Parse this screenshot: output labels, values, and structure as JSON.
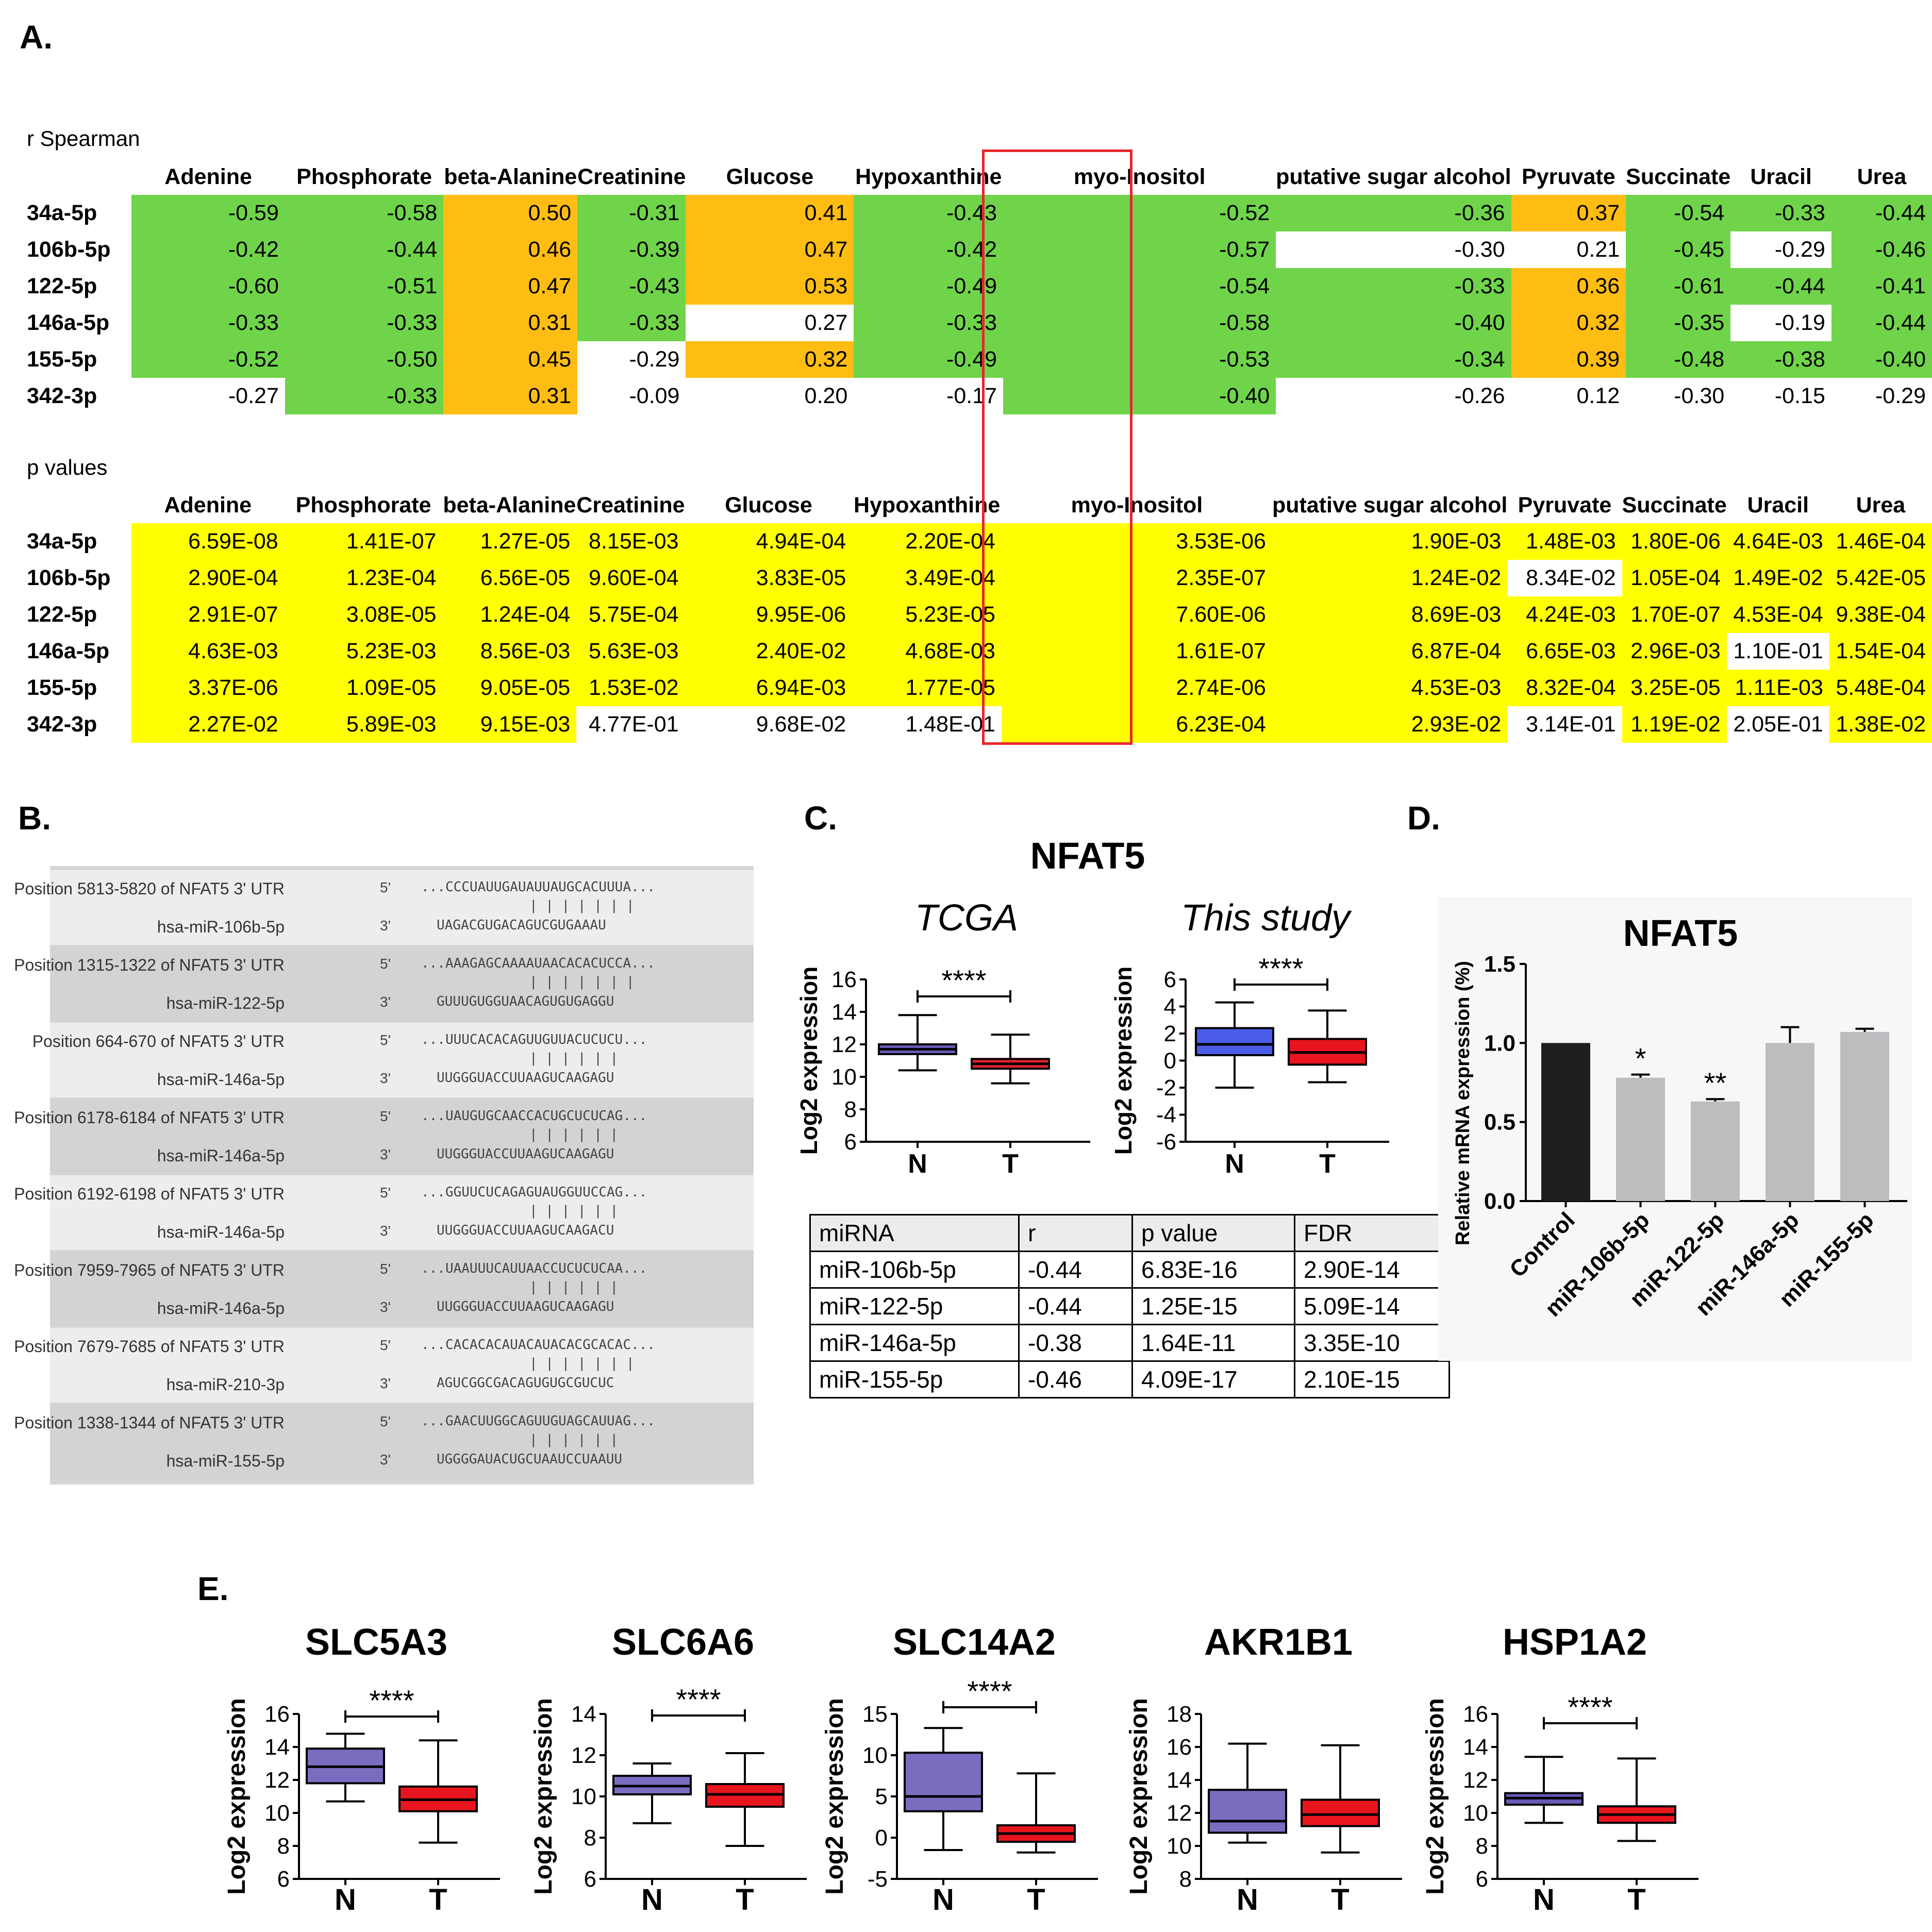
{
  "panels": {
    "a": "A.",
    "b": "B.",
    "c": "C.",
    "d": "D.",
    "e": "E."
  },
  "panel_a": {
    "r_label": "r Spearman",
    "p_label": "p values",
    "columns": [
      "Adenine",
      "Phosphorate",
      "beta-Alanine",
      "Creatinine",
      "Glucose",
      "Hypoxanthine",
      "myo-Inositol",
      "putative sugar alcohol",
      "Pyruvate",
      "Succinate",
      "Uracil",
      "Urea"
    ],
    "highlight_column": "myo-Inositol",
    "colors": {
      "green": "#6fd44a",
      "orange": "#ffbd13",
      "yellow": "#ffff00",
      "box": "#e8262c"
    },
    "r_rows": [
      {
        "mirna": "34a-5p",
        "values": [
          "-0.59",
          "-0.58",
          "0.50",
          "-0.31",
          "0.41",
          "-0.43",
          "-0.52",
          "-0.36",
          "0.37",
          "-0.54",
          "-0.33",
          "-0.44"
        ],
        "colors": [
          "g",
          "g",
          "o",
          "g",
          "o",
          "g",
          "g",
          "g",
          "o",
          "g",
          "g",
          "g"
        ]
      },
      {
        "mirna": "106b-5p",
        "values": [
          "-0.42",
          "-0.44",
          "0.46",
          "-0.39",
          "0.47",
          "-0.42",
          "-0.57",
          "-0.30",
          "0.21",
          "-0.45",
          "-0.29",
          "-0.46"
        ],
        "colors": [
          "g",
          "g",
          "o",
          "g",
          "o",
          "g",
          "g",
          "w",
          "w",
          "g",
          "w",
          "g"
        ]
      },
      {
        "mirna": "122-5p",
        "values": [
          "-0.60",
          "-0.51",
          "0.47",
          "-0.43",
          "0.53",
          "-0.49",
          "-0.54",
          "-0.33",
          "0.36",
          "-0.61",
          "-0.44",
          "-0.41"
        ],
        "colors": [
          "g",
          "g",
          "o",
          "g",
          "o",
          "g",
          "g",
          "g",
          "o",
          "g",
          "g",
          "g"
        ]
      },
      {
        "mirna": "146a-5p",
        "values": [
          "-0.33",
          "-0.33",
          "0.31",
          "-0.33",
          "0.27",
          "-0.33",
          "-0.58",
          "-0.40",
          "0.32",
          "-0.35",
          "-0.19",
          "-0.44"
        ],
        "colors": [
          "g",
          "g",
          "o",
          "g",
          "w",
          "g",
          "g",
          "g",
          "o",
          "g",
          "w",
          "g"
        ]
      },
      {
        "mirna": "155-5p",
        "values": [
          "-0.52",
          "-0.50",
          "0.45",
          "-0.29",
          "0.32",
          "-0.49",
          "-0.53",
          "-0.34",
          "0.39",
          "-0.48",
          "-0.38",
          "-0.40"
        ],
        "colors": [
          "g",
          "g",
          "o",
          "w",
          "o",
          "g",
          "g",
          "g",
          "o",
          "g",
          "g",
          "g"
        ]
      },
      {
        "mirna": "342-3p",
        "values": [
          "-0.27",
          "-0.33",
          "0.31",
          "-0.09",
          "0.20",
          "-0.17",
          "-0.40",
          "-0.26",
          "0.12",
          "-0.30",
          "-0.15",
          "-0.29"
        ],
        "colors": [
          "w",
          "g",
          "o",
          "w",
          "w",
          "w",
          "g",
          "w",
          "w",
          "w",
          "w",
          "w"
        ]
      }
    ],
    "p_rows": [
      {
        "mirna": "34a-5p",
        "values": [
          "6.59E-08",
          "1.41E-07",
          "1.27E-05",
          "8.15E-03",
          "4.94E-04",
          "2.20E-04",
          "3.53E-06",
          "1.90E-03",
          "1.48E-03",
          "1.80E-06",
          "4.64E-03",
          "1.46E-04"
        ],
        "colors": [
          "y",
          "y",
          "y",
          "y",
          "y",
          "y",
          "y",
          "y",
          "y",
          "y",
          "y",
          "y"
        ]
      },
      {
        "mirna": "106b-5p",
        "values": [
          "2.90E-04",
          "1.23E-04",
          "6.56E-05",
          "9.60E-04",
          "3.83E-05",
          "3.49E-04",
          "2.35E-07",
          "1.24E-02",
          "8.34E-02",
          "1.05E-04",
          "1.49E-02",
          "5.42E-05"
        ],
        "colors": [
          "y",
          "y",
          "y",
          "y",
          "y",
          "y",
          "y",
          "y",
          "w",
          "y",
          "y",
          "y"
        ]
      },
      {
        "mirna": "122-5p",
        "values": [
          "2.91E-07",
          "3.08E-05",
          "1.24E-04",
          "5.75E-04",
          "9.95E-06",
          "5.23E-05",
          "7.60E-06",
          "8.69E-03",
          "4.24E-03",
          "1.70E-07",
          "4.53E-04",
          "9.38E-04"
        ],
        "colors": [
          "y",
          "y",
          "y",
          "y",
          "y",
          "y",
          "y",
          "y",
          "y",
          "y",
          "y",
          "y"
        ]
      },
      {
        "mirna": "146a-5p",
        "values": [
          "4.63E-03",
          "5.23E-03",
          "8.56E-03",
          "5.63E-03",
          "2.40E-02",
          "4.68E-03",
          "1.61E-07",
          "6.87E-04",
          "6.65E-03",
          "2.96E-03",
          "1.10E-01",
          "1.54E-04"
        ],
        "colors": [
          "y",
          "y",
          "y",
          "y",
          "y",
          "y",
          "y",
          "y",
          "y",
          "y",
          "w",
          "y"
        ]
      },
      {
        "mirna": "155-5p",
        "values": [
          "3.37E-06",
          "1.09E-05",
          "9.05E-05",
          "1.53E-02",
          "6.94E-03",
          "1.77E-05",
          "2.74E-06",
          "4.53E-03",
          "8.32E-04",
          "3.25E-05",
          "1.11E-03",
          "5.48E-04"
        ],
        "colors": [
          "y",
          "y",
          "y",
          "y",
          "y",
          "y",
          "y",
          "y",
          "y",
          "y",
          "y",
          "y"
        ]
      },
      {
        "mirna": "342-3p",
        "values": [
          "2.27E-02",
          "5.89E-03",
          "9.15E-03",
          "4.77E-01",
          "9.68E-02",
          "1.48E-01",
          "6.23E-04",
          "2.93E-02",
          "3.14E-01",
          "1.19E-02",
          "2.05E-01",
          "1.38E-02"
        ],
        "colors": [
          "y",
          "y",
          "y",
          "w",
          "w",
          "w",
          "y",
          "y",
          "w",
          "y",
          "w",
          "y"
        ]
      }
    ]
  },
  "panel_b": {
    "rows": [
      {
        "pos": "Position 5813-5820 of NFAT5 3' UTR",
        "p5": "5'",
        "seq": "...CCCUAUUGAUAUUAUGCACUUUA...",
        "bars": "| | | | | | |",
        "mir": "hsa-miR-106b-5p",
        "p3": "3'",
        "mseq": "UAGACGUGACAGUCGUGAAAU",
        "shade": "l"
      },
      {
        "pos": "Position 1315-1322 of NFAT5 3' UTR",
        "p5": "5'",
        "seq": "...AAAGAGCAAAAUAACACACUCCA...",
        "bars": "| | | | | | |",
        "mir": "hsa-miR-122-5p",
        "p3": "3'",
        "mseq": "GUUUGUGGUAACAGUGUGAGGU",
        "shade": "d"
      },
      {
        "pos": "Position 664-670 of NFAT5 3' UTR",
        "p5": "5'",
        "seq": "...UUUCACACAGUUGUUACUCUCU...",
        "bars": "| | | | | |",
        "mir": "hsa-miR-146a-5p",
        "p3": "3'",
        "mseq": "UUGGGUACCUUAAGUCAAGAGU",
        "shade": "l"
      },
      {
        "pos": "Position 6178-6184 of NFAT5 3' UTR",
        "p5": "5'",
        "seq": "...UAUGUGCAACCACUGCUCUCAG...",
        "bars": "| | | | | |",
        "mir": "hsa-miR-146a-5p",
        "p3": "3'",
        "mseq": "UUGGGUACCUUAAGUCAAGAGU",
        "shade": "d"
      },
      {
        "pos": "Position 6192-6198 of NFAT5 3' UTR",
        "p5": "5'",
        "seq": "...GGUUCUCAGAGUAUGGUUCCAG...",
        "bars": "| | | | | |",
        "mir": "hsa-miR-146a-5p",
        "p3": "3'",
        "mseq": "UUGGGUACCUUAAGUCAAGACU",
        "shade": "l"
      },
      {
        "pos": "Position 7959-7965 of NFAT5 3' UTR",
        "p5": "5'",
        "seq": "...UAAUUUCAUUAACCUCUCUCAA...",
        "bars": "| | | | | |",
        "mir": "hsa-miR-146a-5p",
        "p3": "3'",
        "mseq": "UUGGGUACCUUAAGUCAAGAGU",
        "shade": "d"
      },
      {
        "pos": "Position 7679-7685 of NFAT5 3' UTR",
        "p5": "5'",
        "seq": "...CACACACAUACAUACACGCACAC...",
        "bars": "| | | | | | |",
        "mir": "hsa-miR-210-3p",
        "p3": "3'",
        "mseq": "AGUCGGCGACAGUGUGCGUCUC",
        "shade": "l"
      },
      {
        "pos": "Position 1338-1344 of NFAT5 3' UTR",
        "p5": "5'",
        "seq": "...GAACUUGGCAGUUGUAGCAUUAG...",
        "bars": "| | | | | |",
        "mir": "hsa-miR-155-5p",
        "p3": "3'",
        "mseq": "UGGGGAUACUGCUAAUCCUAAUU",
        "shade": "d"
      }
    ]
  },
  "panel_c": {
    "title": "NFAT5",
    "stats_header": [
      "miRNA",
      "r",
      "p value",
      "FDR"
    ],
    "stats_rows": [
      [
        "miR-106b-5p",
        "-0.44",
        "6.83E-16",
        "2.90E-14"
      ],
      [
        "miR-122-5p",
        "-0.44",
        "1.25E-15",
        "5.09E-14"
      ],
      [
        "miR-146a-5p",
        "-0.38",
        "1.64E-11",
        "3.35E-10"
      ],
      [
        "miR-155-5p",
        "-0.46",
        "4.09E-17",
        "2.10E-15"
      ]
    ]
  },
  "panel_d": {
    "title": "NFAT5",
    "ylabel": "Relative mRNA expression (%)"
  },
  "chart_data": [
    {
      "type": "box",
      "title": "TCGA",
      "ylabel": "Log2 expression",
      "categories": [
        "N",
        "T"
      ],
      "ylim": [
        6,
        16
      ],
      "yticks": [
        6,
        8,
        10,
        12,
        14,
        16
      ],
      "significance": "****",
      "boxes": [
        {
          "min": 10.4,
          "q1": 11.4,
          "median": 11.7,
          "q3": 12.0,
          "max": 13.8,
          "color": "#6a5ab8"
        },
        {
          "min": 9.6,
          "q1": 10.5,
          "median": 10.8,
          "q3": 11.1,
          "max": 12.6,
          "color": "#e3232b"
        }
      ]
    },
    {
      "type": "box",
      "title": "This study",
      "ylabel": "Log2 expression",
      "categories": [
        "N",
        "T"
      ],
      "ylim": [
        -6,
        6
      ],
      "yticks": [
        -6,
        -4,
        -2,
        0,
        2,
        4,
        6
      ],
      "significance": "****",
      "boxes": [
        {
          "min": -2.0,
          "q1": 0.4,
          "median": 1.2,
          "q3": 2.4,
          "max": 4.3,
          "color": "#4a5de8"
        },
        {
          "min": -1.6,
          "q1": -0.3,
          "median": 0.6,
          "q3": 1.6,
          "max": 3.7,
          "color": "#e8151f"
        }
      ]
    },
    {
      "type": "bar",
      "title": "NFAT5",
      "ylabel": "Relative mRNA expression (%)",
      "categories": [
        "Control",
        "miR-106b-5p",
        "miR-122-5p",
        "miR-146a-5p",
        "miR-155-5p"
      ],
      "values": [
        1.0,
        0.78,
        0.63,
        1.0,
        1.07
      ],
      "errors": [
        0,
        0.02,
        0.015,
        0.1,
        0.02
      ],
      "annotations": [
        "",
        "*",
        "**",
        "",
        ""
      ],
      "ylim": [
        0,
        1.5
      ],
      "yticks": [
        "0.0",
        "0.5",
        "1.0",
        "1.5"
      ],
      "colors": [
        "#1f1f1f",
        "#bdbdc0",
        "#bdbdc0",
        "#bdbdc0",
        "#bdbdc0"
      ]
    },
    {
      "type": "box",
      "title": "SLC5A3",
      "ylabel": "Log2 expression",
      "categories": [
        "N",
        "T"
      ],
      "ylim": [
        6,
        16
      ],
      "yticks": [
        6,
        8,
        10,
        12,
        14,
        16
      ],
      "significance": "****",
      "boxes": [
        {
          "min": 10.7,
          "q1": 11.8,
          "median": 12.8,
          "q3": 13.9,
          "max": 14.8,
          "color": "#7b6cc0"
        },
        {
          "min": 8.2,
          "q1": 10.1,
          "median": 10.8,
          "q3": 11.6,
          "max": 14.4,
          "color": "#e8151f"
        }
      ]
    },
    {
      "type": "box",
      "title": "SLC6A6",
      "ylabel": "Log2 expression",
      "categories": [
        "N",
        "T"
      ],
      "ylim": [
        6,
        14
      ],
      "yticks": [
        6,
        8,
        10,
        12,
        14
      ],
      "significance": "****",
      "boxes": [
        {
          "min": 8.7,
          "q1": 10.1,
          "median": 10.5,
          "q3": 11.0,
          "max": 11.6,
          "color": "#7b6cc0"
        },
        {
          "min": 7.6,
          "q1": 9.5,
          "median": 10.1,
          "q3": 10.6,
          "max": 12.1,
          "color": "#e8151f"
        }
      ]
    },
    {
      "type": "box",
      "title": "SLC14A2",
      "ylabel": "Log2 expression",
      "categories": [
        "N",
        "T"
      ],
      "ylim": [
        -5,
        15
      ],
      "yticks": [
        -5,
        0,
        5,
        10,
        15
      ],
      "significance": "****",
      "boxes": [
        {
          "min": -1.5,
          "q1": 3.2,
          "median": 5.0,
          "q3": 10.3,
          "max": 13.3,
          "color": "#7b6cc0"
        },
        {
          "min": -1.8,
          "q1": -0.5,
          "median": 0.5,
          "q3": 1.5,
          "max": 7.8,
          "color": "#e8151f"
        }
      ]
    },
    {
      "type": "box",
      "title": "AKR1B1",
      "ylabel": "Log2 expression",
      "categories": [
        "N",
        "T"
      ],
      "ylim": [
        8,
        18
      ],
      "yticks": [
        8,
        10,
        12,
        14,
        16,
        18
      ],
      "significance": "",
      "boxes": [
        {
          "min": 10.2,
          "q1": 10.8,
          "median": 11.5,
          "q3": 13.4,
          "max": 16.2,
          "color": "#7b6cc0"
        },
        {
          "min": 9.6,
          "q1": 11.2,
          "median": 11.9,
          "q3": 12.8,
          "max": 16.1,
          "color": "#e8151f"
        }
      ]
    },
    {
      "type": "box",
      "title": "HSP1A2",
      "ylabel": "Log2 expression",
      "categories": [
        "N",
        "T"
      ],
      "ylim": [
        6,
        16
      ],
      "yticks": [
        6,
        8,
        10,
        12,
        14,
        16
      ],
      "significance": "****",
      "boxes": [
        {
          "min": 9.4,
          "q1": 10.5,
          "median": 10.9,
          "q3": 11.2,
          "max": 13.4,
          "color": "#6a5ab8"
        },
        {
          "min": 8.3,
          "q1": 9.4,
          "median": 9.9,
          "q3": 10.4,
          "max": 13.3,
          "color": "#e8151f"
        }
      ]
    }
  ]
}
